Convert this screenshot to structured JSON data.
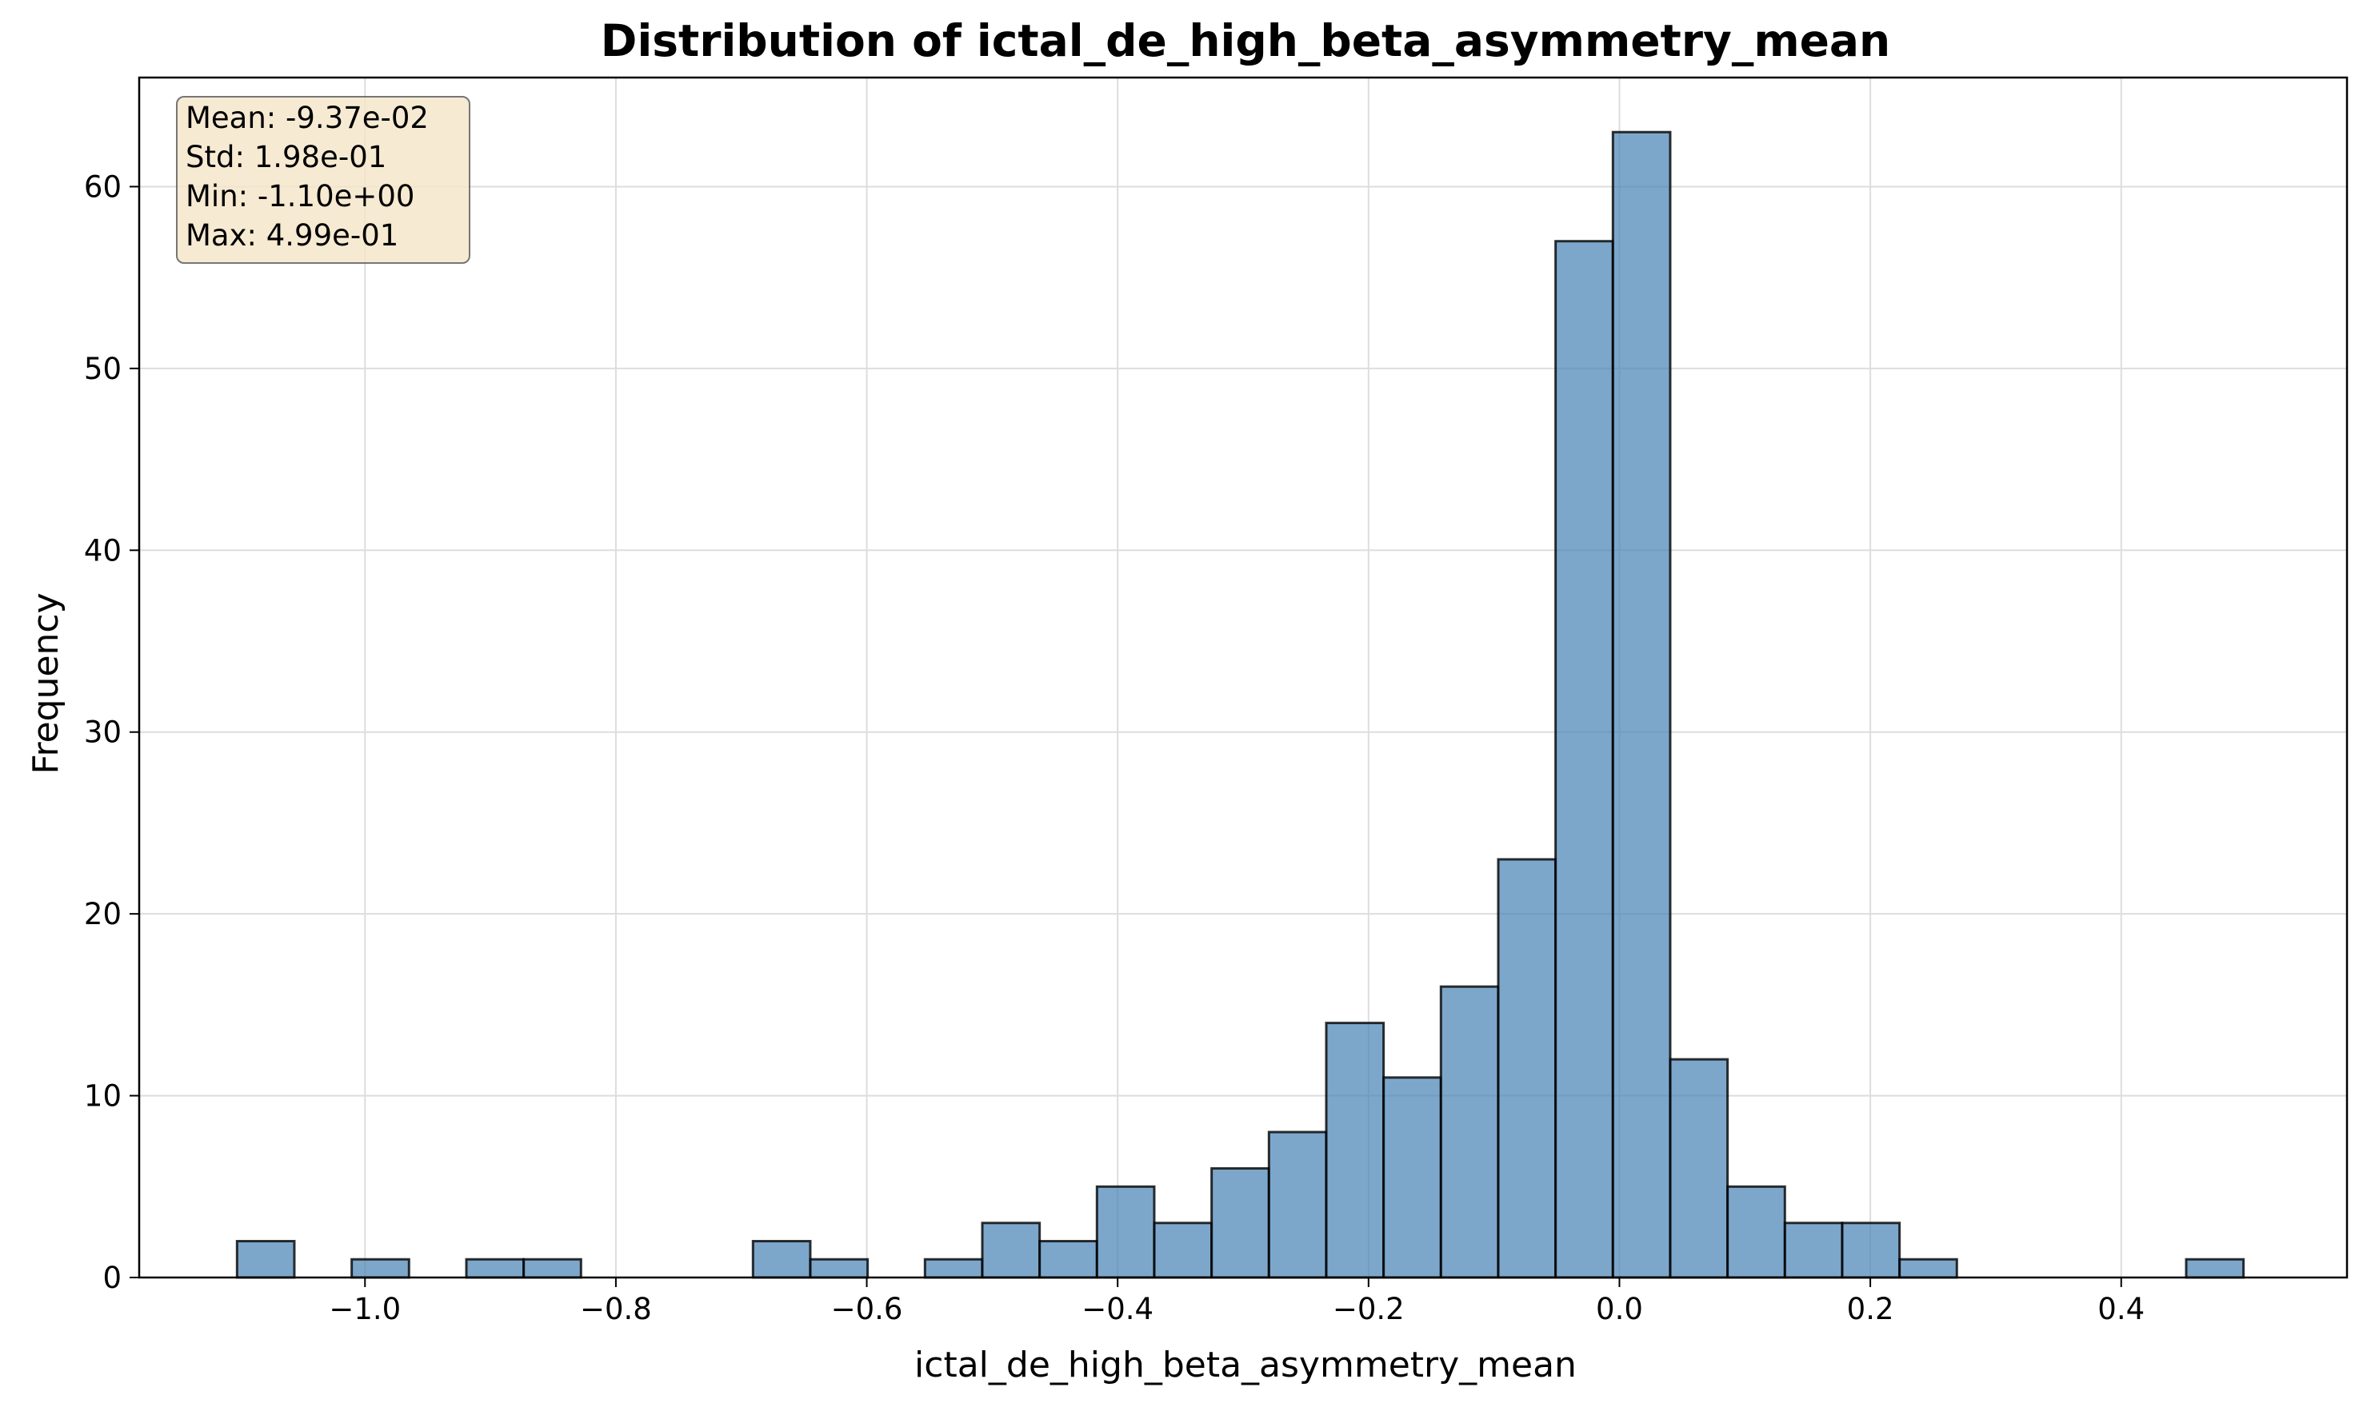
{
  "chart_data": {
    "type": "bar",
    "title": "Distribution of ictal_de_high_beta_asymmetry_mean",
    "xlabel": "ictal_de_high_beta_asymmetry_mean",
    "ylabel": "Frequency",
    "xlim": [
      -1.18,
      0.58
    ],
    "ylim": [
      0,
      66
    ],
    "xticks": [
      -1.0,
      -0.8,
      -0.6,
      -0.4,
      -0.2,
      0.0,
      0.2,
      0.4
    ],
    "xtick_labels": [
      "−1.0",
      "−0.8",
      "−0.6",
      "−0.4",
      "−0.2",
      "0.0",
      "0.2",
      "0.4"
    ],
    "yticks": [
      0,
      10,
      20,
      30,
      40,
      50,
      60
    ],
    "ytick_labels": [
      "0",
      "10",
      "20",
      "30",
      "40",
      "50",
      "60"
    ],
    "grid": true,
    "bin_edges": [
      -1.102,
      -1.0563,
      -1.0106,
      -0.9649,
      -0.9192,
      -0.8735,
      -0.8278,
      -0.7821,
      -0.7364,
      -0.6907,
      -0.645,
      -0.5993,
      -0.5536,
      -0.5079,
      -0.4622,
      -0.4165,
      -0.3708,
      -0.3251,
      -0.2794,
      -0.2337,
      -0.188,
      -0.1423,
      -0.0966,
      -0.0509,
      -0.0052,
      0.0405,
      0.0862,
      0.1319,
      0.1776,
      0.2233,
      0.269,
      0.3147,
      0.3604,
      0.4061,
      0.4518,
      0.4975
    ],
    "values": [
      2,
      0,
      1,
      0,
      1,
      1,
      0,
      0,
      0,
      2,
      1,
      0,
      1,
      3,
      2,
      5,
      3,
      6,
      8,
      14,
      11,
      16,
      23,
      57,
      63,
      12,
      5,
      3,
      3,
      1,
      0,
      0,
      0,
      0,
      1
    ],
    "bar_color": "#4682b4",
    "edge_color": "#000000",
    "stats": {
      "mean": "Mean: -9.37e-02",
      "std": "Std: 1.98e-01",
      "min": "Min: -1.10e+00",
      "max": "Max: 4.99e-01"
    }
  }
}
